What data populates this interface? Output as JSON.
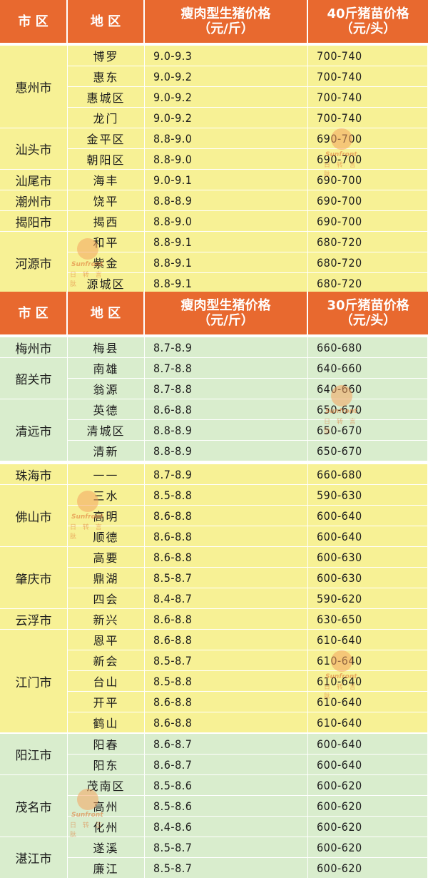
{
  "header1": {
    "city": "市 区",
    "district": "地 区",
    "price_l1": "瘦肉型生猪价格",
    "price_l2": "（元/斤）",
    "piglet_l1": "40斤猪苗价格",
    "piglet_l2": "（元/头）"
  },
  "header2": {
    "city": "市 区",
    "district": "地 区",
    "price_l1": "瘦肉型生猪价格",
    "price_l2": "（元/斤）",
    "piglet_l1": "30斤猪苗价格",
    "piglet_l2": "（元/头）"
  },
  "watermark": {
    "en": "Sunfront",
    "cn": "日 转 言 肽"
  },
  "section1": [
    {
      "city": "惠州市",
      "rows": [
        {
          "district": "博罗",
          "price": "9.0-9.3",
          "piglet": "700-740"
        },
        {
          "district": "惠东",
          "price": "9.0-9.2",
          "piglet": "700-740"
        },
        {
          "district": "惠城区",
          "price": "9.0-9.2",
          "piglet": "700-740"
        },
        {
          "district": "龙门",
          "price": "9.0-9.2",
          "piglet": "700-740"
        }
      ]
    },
    {
      "city": "汕头市",
      "rows": [
        {
          "district": "金平区",
          "price": "8.8-9.0",
          "piglet": "690-700"
        },
        {
          "district": "朝阳区",
          "price": "8.8-9.0",
          "piglet": "690-700"
        }
      ]
    },
    {
      "city": "汕尾市",
      "rows": [
        {
          "district": "海丰",
          "price": "9.0-9.1",
          "piglet": "690-700"
        }
      ]
    },
    {
      "city": "潮州市",
      "rows": [
        {
          "district": "饶平",
          "price": "8.8-8.9",
          "piglet": "690-700"
        }
      ]
    },
    {
      "city": "揭阳市",
      "rows": [
        {
          "district": "揭西",
          "price": "8.8-9.0",
          "piglet": "690-700"
        }
      ]
    },
    {
      "city": "河源市",
      "rows": [
        {
          "district": "和平",
          "price": "8.8-9.1",
          "piglet": "680-720"
        },
        {
          "district": "紫金",
          "price": "8.8-9.1",
          "piglet": "680-720"
        },
        {
          "district": "源城区",
          "price": "8.8-9.1",
          "piglet": "680-720"
        }
      ]
    }
  ],
  "section2": [
    {
      "city": "梅州市",
      "rows": [
        {
          "district": "梅县",
          "price": "8.7-8.9",
          "piglet": "660-680"
        }
      ]
    },
    {
      "city": "韶关市",
      "rows": [
        {
          "district": "南雄",
          "price": "8.7-8.8",
          "piglet": "640-660"
        },
        {
          "district": "翁源",
          "price": "8.7-8.8",
          "piglet": "640-660"
        }
      ]
    },
    {
      "city": "清远市",
      "rows": [
        {
          "district": "英德",
          "price": "8.6-8.8",
          "piglet": "650-670"
        },
        {
          "district": "清城区",
          "price": "8.8-8.9",
          "piglet": "650-670"
        },
        {
          "district": "清新",
          "price": "8.8-8.9",
          "piglet": "650-670"
        }
      ]
    }
  ],
  "section3": [
    {
      "city": "珠海市",
      "rows": [
        {
          "district": "——",
          "price": "8.7-8.9",
          "piglet": "660-680"
        }
      ]
    },
    {
      "city": "佛山市",
      "rows": [
        {
          "district": "三水",
          "price": "8.5-8.8",
          "piglet": "590-630"
        },
        {
          "district": "高明",
          "price": "8.6-8.8",
          "piglet": "600-640"
        },
        {
          "district": "顺德",
          "price": "8.6-8.8",
          "piglet": "600-640"
        }
      ]
    },
    {
      "city": "肇庆市",
      "rows": [
        {
          "district": "高要",
          "price": "8.6-8.8",
          "piglet": "600-630"
        },
        {
          "district": "鼎湖",
          "price": "8.5-8.7",
          "piglet": "600-630"
        },
        {
          "district": "四会",
          "price": "8.4-8.7",
          "piglet": "590-620"
        }
      ]
    },
    {
      "city": "云浮市",
      "rows": [
        {
          "district": "新兴",
          "price": "8.6-8.8",
          "piglet": "630-650"
        }
      ]
    },
    {
      "city": "江门市",
      "rows": [
        {
          "district": "恩平",
          "price": "8.6-8.8",
          "piglet": "610-640"
        },
        {
          "district": "新会",
          "price": "8.5-8.7",
          "piglet": "610-640"
        },
        {
          "district": "台山",
          "price": "8.5-8.8",
          "piglet": "610-640"
        },
        {
          "district": "开平",
          "price": "8.6-8.8",
          "piglet": "610-640"
        },
        {
          "district": "鹤山",
          "price": "8.6-8.8",
          "piglet": "610-640"
        }
      ]
    }
  ],
  "section4": [
    {
      "city": "阳江市",
      "rows": [
        {
          "district": "阳春",
          "price": "8.6-8.7",
          "piglet": "600-640"
        },
        {
          "district": "阳东",
          "price": "8.6-8.7",
          "piglet": "600-640"
        }
      ]
    },
    {
      "city": "茂名市",
      "rows": [
        {
          "district": "茂南区",
          "price": "8.5-8.6",
          "piglet": "600-620"
        },
        {
          "district": "高州",
          "price": "8.5-8.6",
          "piglet": "600-620"
        },
        {
          "district": "化州",
          "price": "8.4-8.6",
          "piglet": "600-620"
        }
      ]
    },
    {
      "city": "湛江市",
      "rows": [
        {
          "district": "遂溪",
          "price": "8.5-8.7",
          "piglet": "600-620"
        },
        {
          "district": "廉江",
          "price": "8.5-8.7",
          "piglet": "600-620"
        }
      ]
    }
  ]
}
